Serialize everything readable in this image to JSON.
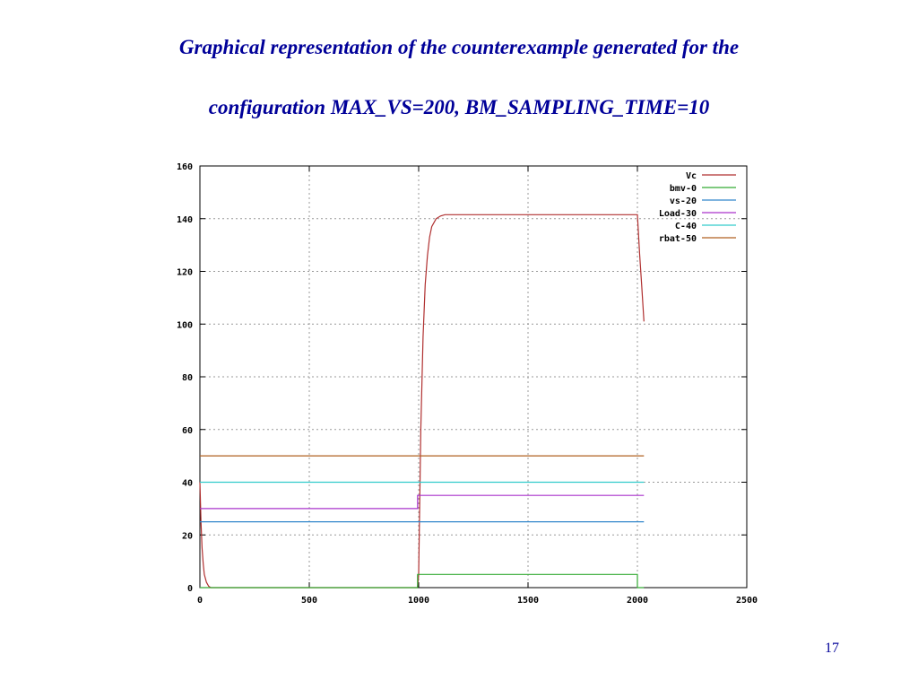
{
  "slide": {
    "title_line1": "Graphical representation of the counterexample generated for the",
    "title_line2": "configuration MAX_VS=200, BM_SAMPLING_TIME=10",
    "page_number": "17"
  },
  "chart_data": {
    "type": "line",
    "title": "",
    "xlabel": "",
    "ylabel": "",
    "xlim": [
      0,
      2500
    ],
    "ylim": [
      0,
      160
    ],
    "xticks": [
      0,
      500,
      1000,
      1500,
      2000,
      2500
    ],
    "yticks": [
      0,
      20,
      40,
      60,
      80,
      100,
      120,
      140,
      160
    ],
    "grid": true,
    "legend_position": "top-right",
    "series": [
      {
        "name": "Vc",
        "color": "#b03030",
        "x": [
          0,
          5,
          10,
          15,
          20,
          30,
          40,
          50,
          60,
          990,
          995,
          1000,
          1010,
          1020,
          1030,
          1040,
          1050,
          1060,
          1080,
          1100,
          1120,
          2000,
          2010,
          2020,
          2030
        ],
        "y": [
          40,
          25,
          15,
          9,
          5,
          2,
          0.5,
          0,
          0,
          0,
          0,
          5,
          60,
          95,
          115,
          126,
          133,
          137,
          140,
          141,
          141.5,
          141.5,
          127,
          114,
          101
        ]
      },
      {
        "name": "bmv-0",
        "color": "#33aa33",
        "x": [
          0,
          995,
          995,
          2000,
          2000,
          2030
        ],
        "y": [
          0,
          0,
          5,
          5,
          0,
          0
        ]
      },
      {
        "name": "vs-20",
        "color": "#3388cc",
        "x": [
          0,
          2030
        ],
        "y": [
          25,
          25
        ]
      },
      {
        "name": "Load-30",
        "color": "#aa33cc",
        "x": [
          0,
          995,
          995,
          2030
        ],
        "y": [
          30,
          30,
          35,
          35
        ]
      },
      {
        "name": "C-40",
        "color": "#33cccc",
        "x": [
          0,
          2030
        ],
        "y": [
          40,
          40
        ]
      },
      {
        "name": "rbat-50",
        "color": "#b06020",
        "x": [
          0,
          2030
        ],
        "y": [
          50,
          50
        ]
      }
    ]
  }
}
